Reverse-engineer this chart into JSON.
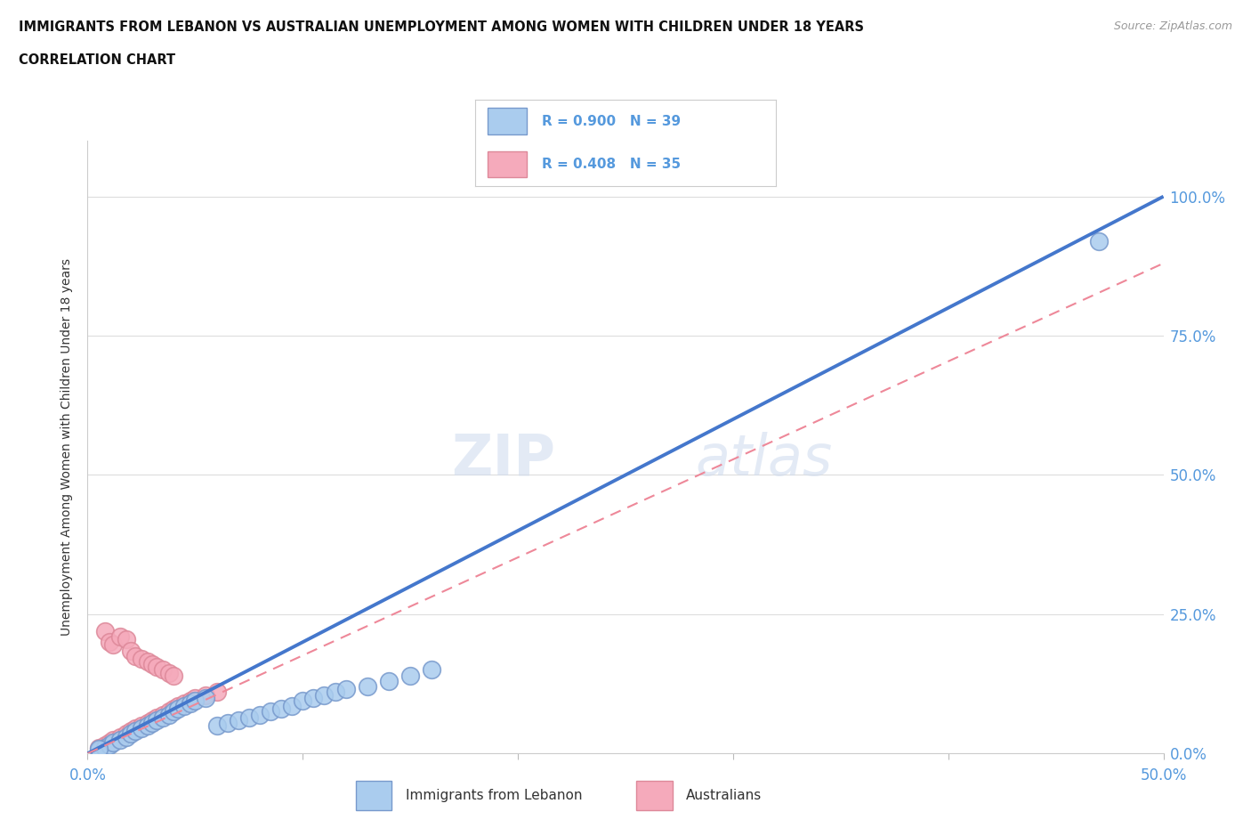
{
  "title_line1": "IMMIGRANTS FROM LEBANON VS AUSTRALIAN UNEMPLOYMENT AMONG WOMEN WITH CHILDREN UNDER 18 YEARS",
  "title_line2": "CORRELATION CHART",
  "source_text": "Source: ZipAtlas.com",
  "ylabel": "Unemployment Among Women with Children Under 18 years",
  "xlim": [
    0.0,
    0.5
  ],
  "ylim": [
    0.0,
    1.1
  ],
  "ytick_labels": [
    "0.0%",
    "25.0%",
    "50.0%",
    "75.0%",
    "100.0%"
  ],
  "ytick_values": [
    0.0,
    0.25,
    0.5,
    0.75,
    1.0
  ],
  "xtick_values": [
    0.0,
    0.1,
    0.2,
    0.3,
    0.4,
    0.5
  ],
  "xtick_labels": [
    "0.0%",
    "",
    "",
    "",
    "",
    "50.0%"
  ],
  "watermark_zip": "ZIP",
  "watermark_atlas": "atlas",
  "lebanon_color": "#aaccee",
  "lebanon_edge_color": "#7799cc",
  "australian_color": "#f5aabb",
  "australian_edge_color": "#dd8899",
  "lebanon_R": 0.9,
  "lebanon_N": 39,
  "australian_R": 0.408,
  "australian_N": 35,
  "lebanon_line_color": "#4477cc",
  "australian_line_color": "#ee8899",
  "grid_color": "#dddddd",
  "title_color": "#111111",
  "axis_label_color": "#333333",
  "tick_label_color": "#5599dd",
  "source_color": "#999999",
  "lebanon_line_x": [
    0.0,
    0.5
  ],
  "lebanon_line_y": [
    0.0,
    1.0
  ],
  "australian_line_x": [
    0.0,
    0.5
  ],
  "australian_line_y": [
    0.0,
    0.88
  ],
  "lebanon_scatter_x": [
    0.005,
    0.008,
    0.01,
    0.012,
    0.015,
    0.018,
    0.02,
    0.022,
    0.025,
    0.028,
    0.03,
    0.032,
    0.035,
    0.038,
    0.04,
    0.042,
    0.045,
    0.048,
    0.05,
    0.055,
    0.06,
    0.065,
    0.07,
    0.075,
    0.08,
    0.085,
    0.09,
    0.095,
    0.1,
    0.105,
    0.11,
    0.115,
    0.12,
    0.13,
    0.14,
    0.15,
    0.16,
    0.47,
    0.005
  ],
  "lebanon_scatter_y": [
    0.005,
    0.01,
    0.015,
    0.02,
    0.025,
    0.03,
    0.035,
    0.04,
    0.045,
    0.05,
    0.055,
    0.06,
    0.065,
    0.07,
    0.075,
    0.08,
    0.085,
    0.09,
    0.095,
    0.1,
    0.05,
    0.055,
    0.06,
    0.065,
    0.07,
    0.075,
    0.08,
    0.085,
    0.095,
    0.1,
    0.105,
    0.11,
    0.115,
    0.12,
    0.13,
    0.14,
    0.15,
    0.92,
    0.008
  ],
  "australian_scatter_x": [
    0.005,
    0.008,
    0.01,
    0.012,
    0.015,
    0.018,
    0.02,
    0.022,
    0.025,
    0.028,
    0.03,
    0.032,
    0.035,
    0.038,
    0.04,
    0.042,
    0.045,
    0.048,
    0.05,
    0.055,
    0.06,
    0.008,
    0.01,
    0.012,
    0.015,
    0.018,
    0.02,
    0.022,
    0.025,
    0.028,
    0.03,
    0.032,
    0.035,
    0.038,
    0.04
  ],
  "australian_scatter_y": [
    0.01,
    0.015,
    0.02,
    0.025,
    0.03,
    0.035,
    0.04,
    0.045,
    0.05,
    0.055,
    0.06,
    0.065,
    0.07,
    0.075,
    0.08,
    0.085,
    0.09,
    0.095,
    0.1,
    0.105,
    0.11,
    0.22,
    0.2,
    0.195,
    0.21,
    0.205,
    0.185,
    0.175,
    0.17,
    0.165,
    0.16,
    0.155,
    0.15,
    0.145,
    0.14
  ]
}
